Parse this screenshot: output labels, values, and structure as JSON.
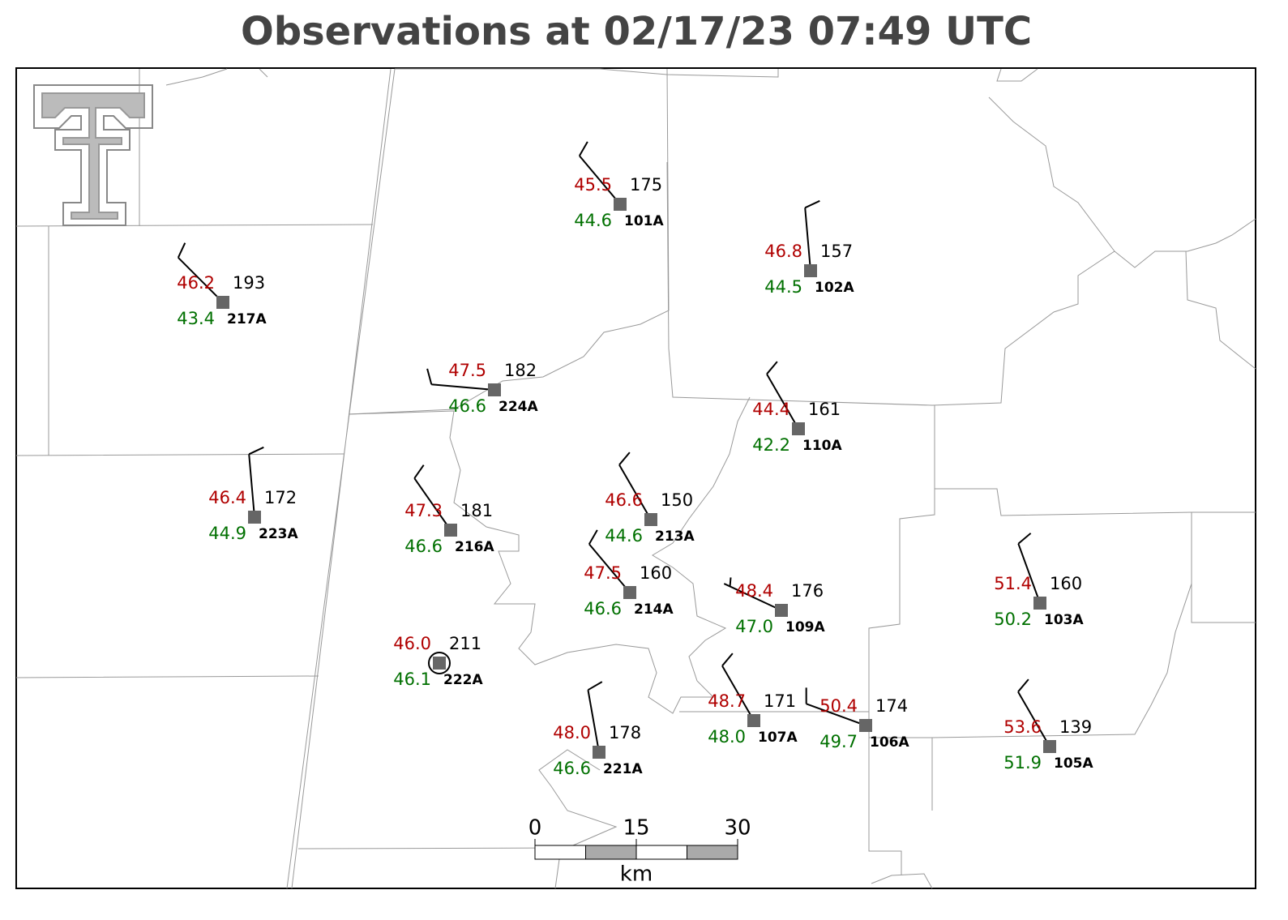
{
  "title": "Observations at 02/17/23 07:49 UTC",
  "stations": [
    {
      "id": "101A",
      "temperature": "45.5",
      "dewpoint": "44.6",
      "pressure": "175",
      "wind_direction": 320,
      "wind_speed": 10
    },
    {
      "id": "102A",
      "temperature": "46.8",
      "dewpoint": "44.5",
      "pressure": "157",
      "wind_direction": 355,
      "wind_speed": 10
    },
    {
      "id": "217A",
      "temperature": "46.2",
      "dewpoint": "43.4",
      "pressure": "193",
      "wind_direction": 315,
      "wind_speed": 10
    },
    {
      "id": "224A",
      "temperature": "47.5",
      "dewpoint": "46.6",
      "pressure": "182",
      "wind_direction": 275,
      "wind_speed": 10
    },
    {
      "id": "110A",
      "temperature": "44.4",
      "dewpoint": "42.2",
      "pressure": "161",
      "wind_direction": 330,
      "wind_speed": 10
    },
    {
      "id": "223A",
      "temperature": "46.4",
      "dewpoint": "44.9",
      "pressure": "172",
      "wind_direction": 355,
      "wind_speed": 10
    },
    {
      "id": "216A",
      "temperature": "47.3",
      "dewpoint": "46.6",
      "pressure": "181",
      "wind_direction": 325,
      "wind_speed": 10
    },
    {
      "id": "213A",
      "temperature": "46.6",
      "dewpoint": "44.6",
      "pressure": "150",
      "wind_direction": 330,
      "wind_speed": 10
    },
    {
      "id": "214A",
      "temperature": "47.5",
      "dewpoint": "46.6",
      "pressure": "160",
      "wind_direction": 320,
      "wind_speed": 10
    },
    {
      "id": "109A",
      "temperature": "48.4",
      "dewpoint": "47.0",
      "pressure": "176",
      "wind_direction": 295,
      "wind_speed": 5
    },
    {
      "id": "103A",
      "temperature": "51.4",
      "dewpoint": "50.2",
      "pressure": "160",
      "wind_direction": 340,
      "wind_speed": 10
    },
    {
      "id": "222A",
      "temperature": "46.0",
      "dewpoint": "46.1",
      "pressure": "211",
      "wind_direction": 0,
      "wind_speed": 0
    },
    {
      "id": "221A",
      "temperature": "48.0",
      "dewpoint": "46.6",
      "pressure": "178",
      "wind_direction": 350,
      "wind_speed": 10
    },
    {
      "id": "107A",
      "temperature": "48.7",
      "dewpoint": "48.0",
      "pressure": "171",
      "wind_direction": 330,
      "wind_speed": 10
    },
    {
      "id": "106A",
      "temperature": "50.4",
      "dewpoint": "49.7",
      "pressure": "174",
      "wind_direction": 290,
      "wind_speed": 10
    },
    {
      "id": "105A",
      "temperature": "53.6",
      "dewpoint": "51.9",
      "pressure": "139",
      "wind_direction": 330,
      "wind_speed": 10
    }
  ],
  "scale_bar": {
    "ticks": [
      0,
      15,
      30
    ],
    "unit": "km"
  }
}
